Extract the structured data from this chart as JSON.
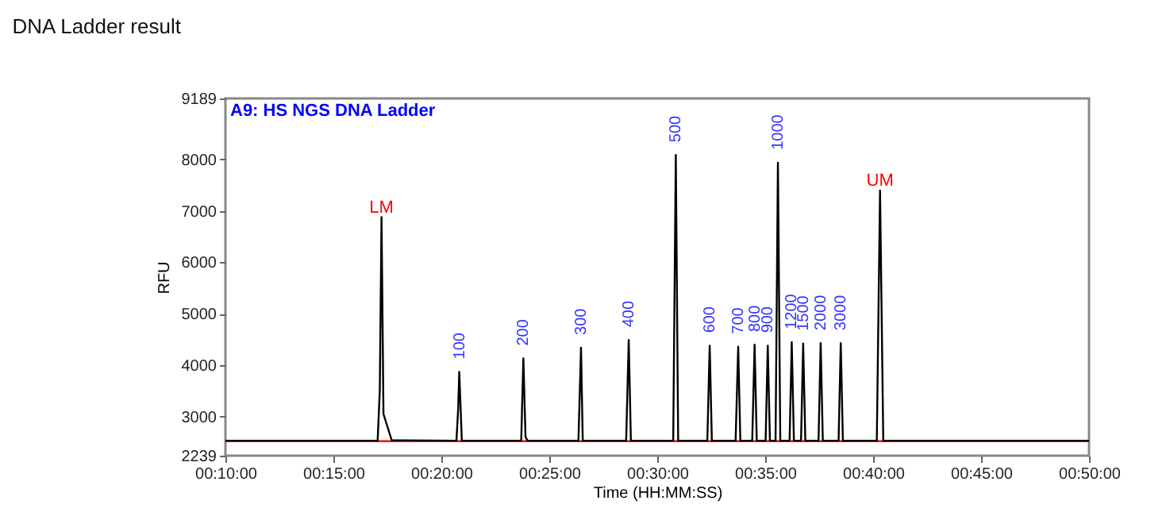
{
  "chart_data": {
    "type": "line",
    "title": "DNA Ladder result",
    "xlabel": "Time (HH:MM:SS)",
    "ylabel": "RFU",
    "xlim": [
      10,
      50
    ],
    "xticks": [
      {
        "value": 10,
        "label": "00:10:00"
      },
      {
        "value": 15,
        "label": "00:15:00"
      },
      {
        "value": 20,
        "label": "00:20:00"
      },
      {
        "value": 25,
        "label": "00:25:00"
      },
      {
        "value": 30,
        "label": "00:30:00"
      },
      {
        "value": 35,
        "label": "00:35:00"
      },
      {
        "value": 40,
        "label": "00:40:00"
      },
      {
        "value": 45,
        "label": "00:45:00"
      },
      {
        "value": 50,
        "label": "00:50:00"
      }
    ],
    "ylim": [
      2239,
      9189
    ],
    "yticks": [
      2239,
      3000,
      4000,
      5000,
      6000,
      7000,
      8000,
      9189
    ],
    "series": [
      {
        "color": "#ff0000",
        "x": [
          10,
          50
        ],
        "values": [
          2520,
          2520
        ]
      },
      {
        "color": "#000000",
        "x": [
          10,
          17.05,
          17.15,
          17.23,
          17.32,
          17.7,
          20.7,
          20.78,
          20.83,
          20.95,
          23.7,
          23.8,
          23.9,
          24.0,
          26.35,
          26.47,
          26.55,
          28.56,
          28.68,
          28.78,
          30.74,
          30.86,
          30.97,
          32.32,
          32.43,
          32.53,
          33.63,
          33.75,
          33.85,
          34.4,
          34.51,
          34.61,
          35.02,
          35.12,
          35.22,
          35.48,
          35.59,
          35.7,
          36.13,
          36.23,
          36.33,
          36.66,
          36.76,
          36.86,
          37.47,
          37.57,
          37.67,
          38.4,
          38.5,
          38.6,
          40.17,
          40.32,
          40.47,
          50
        ],
        "values": [
          2530,
          2530,
          3500,
          6880,
          3050,
          2540,
          2530,
          3150,
          3870,
          2530,
          2530,
          4130,
          2600,
          2530,
          2530,
          4340,
          2530,
          2530,
          4490,
          2530,
          2530,
          8090,
          2530,
          2530,
          4380,
          2530,
          2530,
          4360,
          2530,
          2530,
          4400,
          2530,
          2530,
          4380,
          2530,
          2530,
          7940,
          2530,
          2530,
          4450,
          2530,
          2530,
          4420,
          2530,
          2530,
          4430,
          2530,
          2530,
          4430,
          2530,
          2530,
          7400,
          2530,
          2530
        ]
      }
    ],
    "annotations": [
      "A9: HS NGS DNA Ladder",
      {
        "text": "LM",
        "x": 17.23,
        "y": 6880
      },
      {
        "text": "100",
        "x": 20.83,
        "y": 3870
      },
      {
        "text": "200",
        "x": 23.8,
        "y": 4130
      },
      {
        "text": "300",
        "x": 26.47,
        "y": 4340
      },
      {
        "text": "400",
        "x": 28.68,
        "y": 4490
      },
      {
        "text": "500",
        "x": 30.86,
        "y": 8090
      },
      {
        "text": "600",
        "x": 32.43,
        "y": 4380
      },
      {
        "text": "700",
        "x": 33.75,
        "y": 4360
      },
      {
        "text": "800",
        "x": 34.51,
        "y": 4400
      },
      {
        "text": "900",
        "x": 35.12,
        "y": 4380
      },
      {
        "text": "1000",
        "x": 35.59,
        "y": 7940
      },
      {
        "text": "1200",
        "x": 36.23,
        "y": 4450
      },
      {
        "text": "1500",
        "x": 36.76,
        "y": 4420
      },
      {
        "text": "2000",
        "x": 37.57,
        "y": 4430
      },
      {
        "text": "3000",
        "x": 38.5,
        "y": 4430
      },
      {
        "text": "UM",
        "x": 40.32,
        "y": 7400
      }
    ],
    "grid": false,
    "marker": "none",
    "line_style": "solid"
  }
}
